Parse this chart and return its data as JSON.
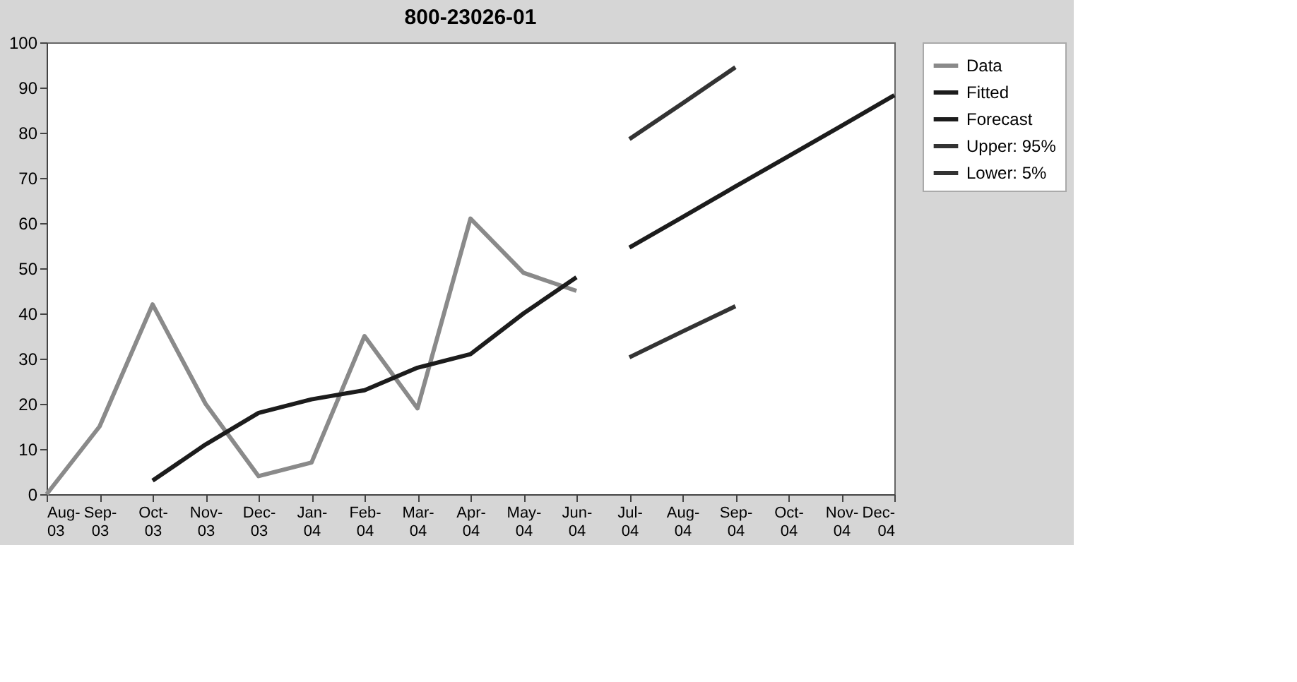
{
  "chart_data": {
    "type": "line",
    "title": "800-23026-01",
    "categories": [
      "Aug-03",
      "Sep-03",
      "Oct-03",
      "Nov-03",
      "Dec-03",
      "Jan-04",
      "Feb-04",
      "Mar-04",
      "Apr-04",
      "May-04",
      "Jun-04",
      "Jul-04",
      "Aug-04",
      "Sep-04",
      "Oct-04",
      "Nov-04",
      "Dec-04"
    ],
    "series": [
      {
        "name": "Data",
        "color": "#8a8a8a",
        "values": [
          0,
          15,
          42,
          20,
          4,
          7,
          35,
          19,
          61,
          49,
          45,
          null,
          null,
          null,
          null,
          null,
          null
        ]
      },
      {
        "name": "Fitted",
        "color": "#1c1c1c",
        "values": [
          null,
          null,
          3,
          11,
          18,
          21,
          23,
          28,
          31,
          40,
          48,
          null,
          null,
          null,
          null,
          null,
          null
        ]
      },
      {
        "name": "Forecast",
        "color": "#1c1c1c",
        "values": [
          null,
          null,
          null,
          null,
          null,
          null,
          null,
          null,
          null,
          null,
          null,
          54.6,
          61.3,
          68.1,
          74.8,
          81.5,
          88.3
        ]
      },
      {
        "name": "Upper: 95%",
        "color": "#333333",
        "values": [
          null,
          null,
          null,
          null,
          null,
          null,
          null,
          null,
          null,
          null,
          null,
          78.6,
          86.5,
          94.5,
          null,
          null,
          null
        ]
      },
      {
        "name": "Lower: 5%",
        "color": "#333333",
        "values": [
          null,
          null,
          null,
          null,
          null,
          null,
          null,
          null,
          null,
          null,
          null,
          30.3,
          36,
          41.6,
          null,
          null,
          null
        ]
      }
    ],
    "ylim": [
      0,
      100
    ],
    "yticks": [
      0,
      10,
      20,
      30,
      40,
      50,
      60,
      70,
      80,
      90,
      100
    ],
    "grid": false,
    "legend": "right",
    "marker": "none",
    "line_style": "solid"
  }
}
